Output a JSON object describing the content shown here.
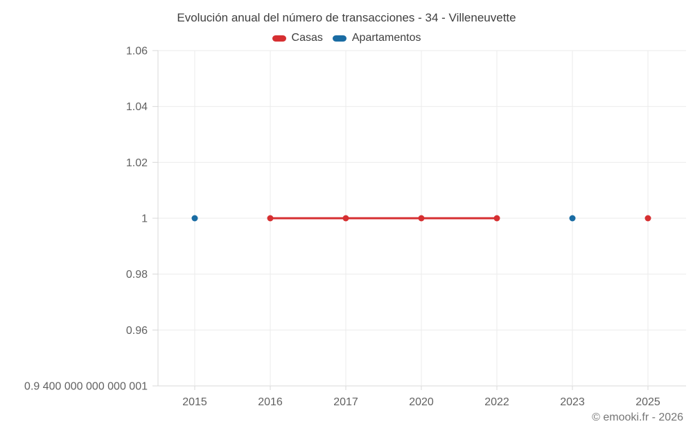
{
  "chart": {
    "title": "Evolución anual del número de transacciones - 34 - Villeneuvette"
  },
  "footer": {
    "text": "© emooki.fr - 2026"
  },
  "chart_data": {
    "type": "line",
    "title": "Evolución anual del número de transacciones - 34 - Villeneuvette",
    "xlabel": "",
    "ylabel": "",
    "categories": [
      "2015",
      "2016",
      "2017",
      "2020",
      "2022",
      "2023",
      "2025"
    ],
    "series": [
      {
        "name": "Casas",
        "color": "#d62f31",
        "values": [
          null,
          1,
          1,
          1,
          1,
          null,
          1
        ]
      },
      {
        "name": "Apartamentos",
        "color": "#1a6ca3",
        "values": [
          1,
          null,
          null,
          null,
          null,
          1,
          null
        ]
      }
    ],
    "ylim": [
      0.9400000000000001,
      1.06
    ],
    "y_ticks": [
      1.06,
      1.04,
      1.02,
      1,
      0.98,
      0.96,
      0.9400000000000001
    ],
    "y_tick_labels": [
      "1.06",
      "1.04",
      "1.02",
      "1",
      "0.98",
      "0.96",
      "0.9 400 000 000 000 001"
    ],
    "grid": true,
    "legend_position": "top"
  }
}
